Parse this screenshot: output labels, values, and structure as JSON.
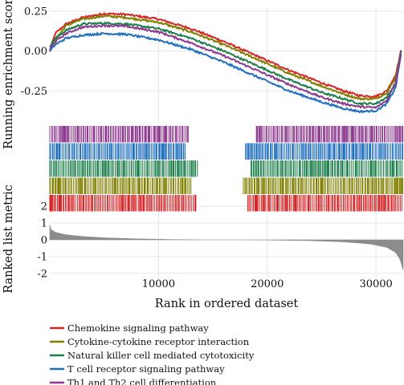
{
  "chart_data": {
    "type": "line",
    "title": "",
    "xlabel": "Rank in ordered dataset",
    "xlim": [
      0,
      32500
    ],
    "x_ticks": [
      10000,
      20000,
      30000
    ],
    "grid": true,
    "legend_position": "bottom-left",
    "enrichment_panel": {
      "ylabel": "Running enrichment score",
      "ylim": [
        -0.45,
        0.28
      ],
      "y_ticks": [
        0.25,
        0.0,
        -0.25
      ],
      "y_tick_labels": [
        "0.25",
        "0.00",
        "-0.25"
      ]
    },
    "ranked_metric_panel": {
      "ylabel": "Ranked list metric",
      "ylim": [
        -2.2,
        2.2
      ],
      "y_ticks": [
        2,
        1,
        0,
        -1,
        -2
      ],
      "y_tick_labels": [
        "2",
        "1",
        "0",
        "-1",
        "-2"
      ],
      "fill_color": "#8c8c8c",
      "profile": [
        [
          0,
          0.9
        ],
        [
          100,
          0.62
        ],
        [
          500,
          0.45
        ],
        [
          1500,
          0.3
        ],
        [
          3000,
          0.2
        ],
        [
          5000,
          0.12
        ],
        [
          8000,
          0.06
        ],
        [
          11000,
          0.02
        ],
        [
          14000,
          0.0
        ],
        [
          18000,
          0.0
        ],
        [
          20000,
          -0.01
        ],
        [
          24000,
          -0.05
        ],
        [
          27000,
          -0.12
        ],
        [
          29500,
          -0.25
        ],
        [
          31000,
          -0.45
        ],
        [
          31800,
          -0.75
        ],
        [
          32200,
          -1.15
        ],
        [
          32500,
          -1.8
        ]
      ]
    },
    "series": [
      {
        "name": "Chemokine signaling pathway",
        "color": "#d62728",
        "curve": [
          [
            0,
            0.0
          ],
          [
            500,
            0.11
          ],
          [
            1500,
            0.17
          ],
          [
            3000,
            0.21
          ],
          [
            5000,
            0.235
          ],
          [
            7000,
            0.23
          ],
          [
            10000,
            0.2
          ],
          [
            13000,
            0.14
          ],
          [
            16000,
            0.06
          ],
          [
            19000,
            -0.03
          ],
          [
            22000,
            -0.12
          ],
          [
            25000,
            -0.2
          ],
          [
            27000,
            -0.25
          ],
          [
            28500,
            -0.28
          ],
          [
            30000,
            -0.285
          ],
          [
            31000,
            -0.25
          ],
          [
            31800,
            -0.15
          ],
          [
            32300,
            0.0
          ]
        ],
        "hits": [
          [
            0,
            13500
          ],
          [
            18200,
            32500
          ]
        ]
      },
      {
        "name": "Cytokine-cytokine receptor interaction",
        "color": "#7f7f00",
        "curve": [
          [
            0,
            0.0
          ],
          [
            500,
            0.07
          ],
          [
            1500,
            0.16
          ],
          [
            3000,
            0.2
          ],
          [
            5000,
            0.22
          ],
          [
            7000,
            0.21
          ],
          [
            10000,
            0.18
          ],
          [
            13000,
            0.12
          ],
          [
            16000,
            0.04
          ],
          [
            19000,
            -0.05
          ],
          [
            22000,
            -0.14
          ],
          [
            25000,
            -0.22
          ],
          [
            27000,
            -0.27
          ],
          [
            28500,
            -0.3
          ],
          [
            30000,
            -0.3
          ],
          [
            31000,
            -0.26
          ],
          [
            31800,
            -0.17
          ],
          [
            32300,
            0.0
          ]
        ],
        "hits": [
          [
            0,
            13000
          ],
          [
            17800,
            32500
          ]
        ]
      },
      {
        "name": "Natural killer cell mediated cytotoxicity",
        "color": "#1b7f4a",
        "curve": [
          [
            0,
            0.03
          ],
          [
            500,
            0.08
          ],
          [
            1500,
            0.13
          ],
          [
            3000,
            0.17
          ],
          [
            5000,
            0.175
          ],
          [
            7000,
            0.17
          ],
          [
            10000,
            0.14
          ],
          [
            13000,
            0.08
          ],
          [
            16000,
            0.0
          ],
          [
            19000,
            -0.09
          ],
          [
            22000,
            -0.18
          ],
          [
            25000,
            -0.26
          ],
          [
            27000,
            -0.3
          ],
          [
            28500,
            -0.33
          ],
          [
            30000,
            -0.33
          ],
          [
            31000,
            -0.29
          ],
          [
            31800,
            -0.2
          ],
          [
            32300,
            0.0
          ]
        ],
        "hits": [
          [
            0,
            13600
          ],
          [
            18500,
            32500
          ]
        ]
      },
      {
        "name": "T cell receptor signaling pathway",
        "color": "#1f6fbf",
        "curve": [
          [
            0,
            0.0
          ],
          [
            500,
            0.04
          ],
          [
            1500,
            0.08
          ],
          [
            3000,
            0.1
          ],
          [
            5000,
            0.11
          ],
          [
            7000,
            0.105
          ],
          [
            10000,
            0.07
          ],
          [
            13000,
            0.01
          ],
          [
            16000,
            -0.07
          ],
          [
            19000,
            -0.16
          ],
          [
            22000,
            -0.25
          ],
          [
            25000,
            -0.32
          ],
          [
            27000,
            -0.36
          ],
          [
            28500,
            -0.38
          ],
          [
            30000,
            -0.375
          ],
          [
            31000,
            -0.33
          ],
          [
            31800,
            -0.23
          ],
          [
            32300,
            -0.02
          ]
        ],
        "hits": [
          [
            0,
            12500
          ],
          [
            18000,
            32500
          ]
        ]
      },
      {
        "name": "Th1 and Th2 cell differentiation",
        "color": "#8e3a8e",
        "curve": [
          [
            0,
            0.01
          ],
          [
            500,
            0.06
          ],
          [
            1500,
            0.11
          ],
          [
            3000,
            0.15
          ],
          [
            5000,
            0.16
          ],
          [
            7000,
            0.155
          ],
          [
            10000,
            0.12
          ],
          [
            13000,
            0.05
          ],
          [
            16000,
            -0.03
          ],
          [
            19000,
            -0.12
          ],
          [
            22000,
            -0.21
          ],
          [
            25000,
            -0.29
          ],
          [
            27000,
            -0.33
          ],
          [
            28500,
            -0.35
          ],
          [
            30000,
            -0.355
          ],
          [
            31000,
            -0.31
          ],
          [
            31800,
            -0.2
          ],
          [
            32300,
            -0.01
          ]
        ],
        "hits": [
          [
            0,
            12800
          ],
          [
            19000,
            32500
          ]
        ]
      }
    ]
  }
}
